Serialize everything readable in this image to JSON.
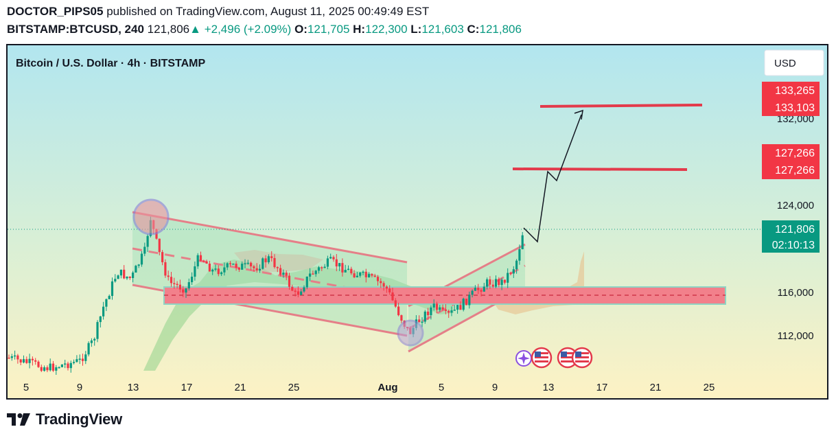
{
  "header": {
    "author": "DOCTOR_PIPS05",
    "published_text": "published on TradingView.com, August 11, 2025 00:49:49 EST",
    "symbol": "BITSTAMP:BTCUSD, 240",
    "last": "121,806",
    "change": "+2,496 (+2.09%)",
    "o_label": "O:",
    "o_value": "121,705",
    "h_label": "H:",
    "h_value": "122,300",
    "l_label": "L:",
    "l_value": "121,603",
    "c_label": "C:",
    "c_value": "121,806"
  },
  "chart_title": "Bitcoin / U.S. Dollar · 4h · BITSTAMP",
  "currency_button": "USD",
  "footer_brand": "TradingView",
  "colors": {
    "up": "#089981",
    "down": "#f23645",
    "badge_red": "#f23645",
    "badge_green": "#089981",
    "bg_top": "#b2e6ef",
    "bg_bottom": "#fdf2c4"
  },
  "icons": [
    "tradingview-logo-icon",
    "up-triangle-icon",
    "us-flag-icon",
    "sparkle-icon"
  ],
  "chart_data": {
    "type": "candlestick",
    "interval": "4h",
    "x_tick_labels": [
      "5",
      "9",
      "13",
      "17",
      "21",
      "25",
      "Aug",
      "5",
      "9",
      "13",
      "17",
      "21",
      "25"
    ],
    "y_tick_labels": [
      "132,000",
      "124,000",
      "116,000",
      "112,000"
    ],
    "ylim": [
      108600,
      135300
    ],
    "price_badges": [
      {
        "value": "133,265",
        "color": "red"
      },
      {
        "value": "133,103",
        "color": "red"
      },
      {
        "value": "127,266",
        "color": "red"
      },
      {
        "value": "127,266",
        "color": "red"
      },
      {
        "value": "121,806",
        "color": "green"
      },
      {
        "value": "02:10:13",
        "color": "green"
      }
    ],
    "current_price": 121806,
    "target_levels": [
      133100,
      127266
    ],
    "support_zone": [
      115000,
      116300
    ],
    "path_projection": [
      121806,
      120500,
      127266,
      126400,
      132800
    ]
  }
}
